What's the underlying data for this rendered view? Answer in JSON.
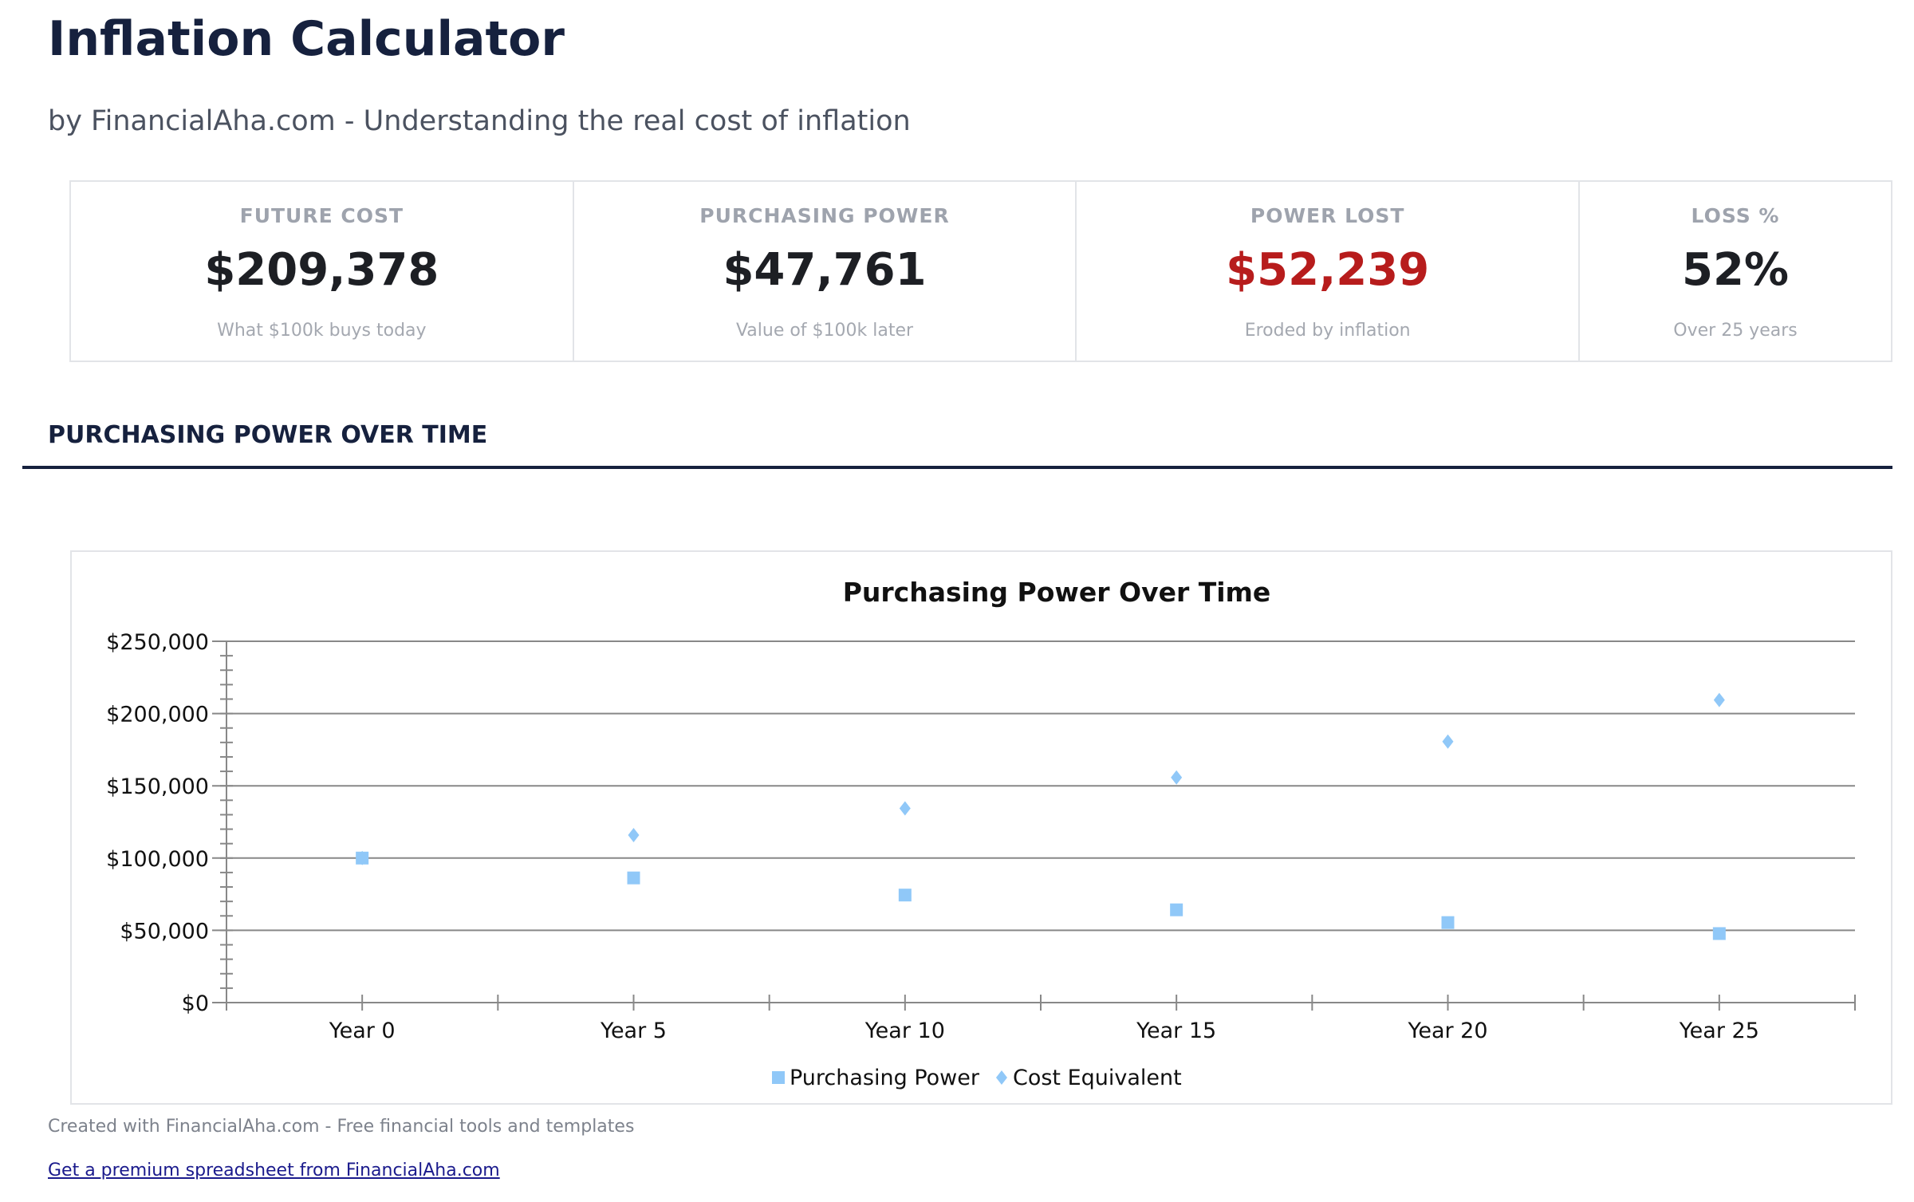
{
  "header": {
    "title": "Inflation Calculator",
    "subtitle": "by FinancialAha.com - Understanding the real cost of inflation"
  },
  "cards": [
    {
      "label": "FUTURE COST",
      "value": "$209,378",
      "sub": "What $100k buys today",
      "color": "#1d1f24"
    },
    {
      "label": "PURCHASING POWER",
      "value": "$47,761",
      "sub": "Value of $100k later",
      "color": "#1d1f24"
    },
    {
      "label": "POWER LOST",
      "value": "$52,239",
      "sub": "Eroded by inflation",
      "color": "#b71c1c"
    },
    {
      "label": "LOSS %",
      "value": "52%",
      "sub": "Over 25 years",
      "color": "#1d1f24"
    }
  ],
  "section_title": "PURCHASING POWER OVER TIME",
  "chart_data": {
    "type": "scatter",
    "title": "Purchasing Power Over Time",
    "categories": [
      "Year 0",
      "Year 5",
      "Year 10",
      "Year 15",
      "Year 20",
      "Year 25"
    ],
    "series": [
      {
        "name": "Purchasing Power",
        "marker": "square",
        "color": "#90c8f8",
        "values": [
          100000,
          86261,
          74409,
          64186,
          55368,
          47761
        ]
      },
      {
        "name": "Cost Equivalent",
        "marker": "diamond",
        "color": "#90c8f8",
        "values": [
          100000,
          115927,
          134392,
          155797,
          180611,
          209378
        ]
      }
    ],
    "ylim": [
      0,
      250000
    ],
    "yticks": [
      "$0",
      "$50,000",
      "$100,000",
      "$150,000",
      "$200,000",
      "$250,000"
    ],
    "grid": true,
    "legend": "bottom"
  },
  "footer": {
    "text": "Created with FinancialAha.com - Free financial tools and templates",
    "link": "Get a premium spreadsheet from FinancialAha.com"
  }
}
